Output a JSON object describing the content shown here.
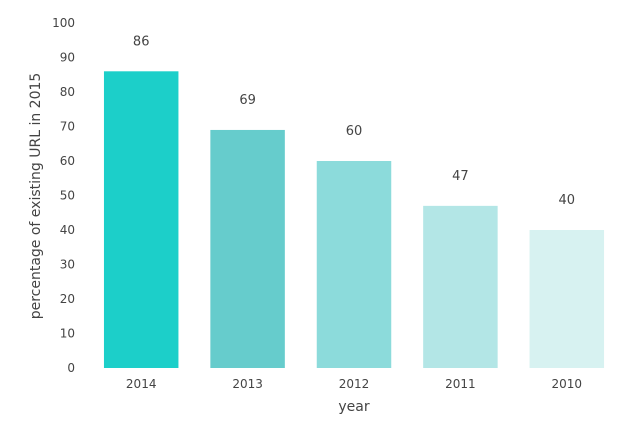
{
  "chart_data": {
    "type": "bar",
    "categories": [
      "2014",
      "2013",
      "2012",
      "2011",
      "2010"
    ],
    "values": [
      86,
      69,
      60,
      47,
      40
    ],
    "data_labels": [
      "86",
      "69",
      "60",
      "47",
      "40"
    ],
    "colors": [
      "#1ccfc9",
      "#66cccc",
      "#8cdbdb",
      "#b3e6e6",
      "#d7f2f1"
    ],
    "title": "",
    "xlabel": "year",
    "ylabel": "percentage of existing URL in 2015",
    "ylim": [
      0,
      100
    ],
    "yticks": [
      "0",
      "10",
      "20",
      "30",
      "40",
      "50",
      "60",
      "70",
      "80",
      "90",
      "100"
    ],
    "grid": false,
    "legend": "none"
  }
}
